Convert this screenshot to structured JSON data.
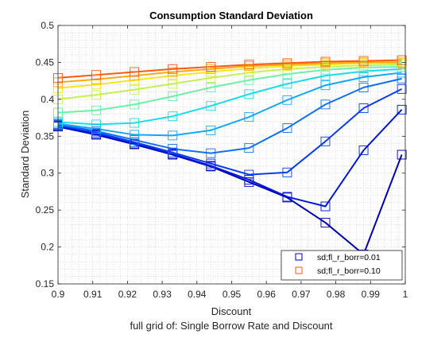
{
  "chart_data": {
    "type": "line",
    "title": "Consumption Standard Deviation",
    "xlabel": "Discount",
    "ylabel": "Standard Deviation",
    "caption": "full grid of: Single Borrow Rate and Discount",
    "xlim": [
      0.9,
      1.0
    ],
    "ylim": [
      0.15,
      0.5
    ],
    "xticks": [
      0.9,
      0.91,
      0.92,
      0.93,
      0.94,
      0.95,
      0.96,
      0.97,
      0.98,
      0.99,
      1.0
    ],
    "xtick_labels": [
      "0.9",
      "0.91",
      "0.92",
      "0.93",
      "0.94",
      "0.95",
      "0.96",
      "0.97",
      "0.98",
      "0.99",
      "1"
    ],
    "yticks": [
      0.15,
      0.2,
      0.25,
      0.3,
      0.35,
      0.4,
      0.45,
      0.5
    ],
    "ytick_labels": [
      "0.15",
      "0.2",
      "0.25",
      "0.3",
      "0.35",
      "0.4",
      "0.45",
      "0.5"
    ],
    "grid": "dotted minor grid",
    "legend_position": "bottom-right",
    "legend": [
      {
        "label": "sd;fl_r_borr=0.01",
        "color": "#0000b3"
      },
      {
        "label": "sd;fl_r_borr=0.10",
        "color": "#ff5a14"
      }
    ],
    "x": [
      0.9,
      0.911,
      0.922,
      0.933,
      0.944,
      0.955,
      0.966,
      0.977,
      0.988,
      0.999
    ],
    "series": [
      {
        "color": "#0000b3",
        "values": [
          0.363,
          0.352,
          0.339,
          0.325,
          0.309,
          0.288,
          0.267,
          0.233,
          0.19,
          0.325
        ]
      },
      {
        "color": "#0018d6",
        "values": [
          0.364,
          0.353,
          0.34,
          0.326,
          0.31,
          0.291,
          0.268,
          0.255,
          0.331,
          0.386
        ]
      },
      {
        "color": "#0a3cf0",
        "values": [
          0.365,
          0.355,
          0.342,
          0.328,
          0.313,
          0.298,
          0.301,
          0.343,
          0.388,
          0.414
        ]
      },
      {
        "color": "#1070f5",
        "values": [
          0.366,
          0.357,
          0.345,
          0.333,
          0.327,
          0.334,
          0.361,
          0.393,
          0.416,
          0.428
        ]
      },
      {
        "color": "#12a8f5",
        "values": [
          0.367,
          0.36,
          0.352,
          0.351,
          0.358,
          0.376,
          0.399,
          0.419,
          0.43,
          0.436
        ]
      },
      {
        "color": "#1cdbe8",
        "values": [
          0.369,
          0.366,
          0.368,
          0.377,
          0.391,
          0.407,
          0.421,
          0.432,
          0.438,
          0.441
        ]
      },
      {
        "color": "#6cf0a8",
        "values": [
          0.382,
          0.385,
          0.393,
          0.404,
          0.416,
          0.426,
          0.434,
          0.44,
          0.443,
          0.444
        ]
      },
      {
        "color": "#c4f050",
        "values": [
          0.4,
          0.406,
          0.413,
          0.421,
          0.429,
          0.436,
          0.441,
          0.444,
          0.446,
          0.447
        ]
      },
      {
        "color": "#f5e61e",
        "values": [
          0.415,
          0.42,
          0.426,
          0.432,
          0.437,
          0.442,
          0.445,
          0.447,
          0.449,
          0.449
        ]
      },
      {
        "color": "#ffaa10",
        "values": [
          0.423,
          0.427,
          0.432,
          0.437,
          0.441,
          0.445,
          0.447,
          0.449,
          0.45,
          0.45
        ]
      },
      {
        "color": "#ff5a14",
        "values": [
          0.429,
          0.433,
          0.437,
          0.441,
          0.444,
          0.447,
          0.449,
          0.451,
          0.452,
          0.453
        ]
      }
    ]
  }
}
